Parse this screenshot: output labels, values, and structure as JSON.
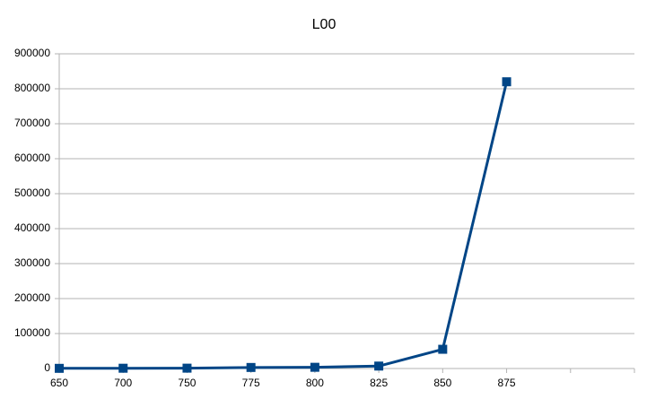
{
  "chart_data": {
    "type": "line",
    "title": "L00",
    "categories": [
      "650",
      "700",
      "750",
      "775",
      "800",
      "825",
      "850",
      "875",
      null,
      null
    ],
    "values": [
      500,
      800,
      1000,
      3000,
      3500,
      7000,
      55000,
      820000,
      null,
      null
    ],
    "color": "#004586",
    "ylim": [
      0,
      900000
    ],
    "yticks": [
      0,
      100000,
      200000,
      300000,
      400000,
      500000,
      600000,
      700000,
      800000,
      900000
    ],
    "grid": true
  }
}
